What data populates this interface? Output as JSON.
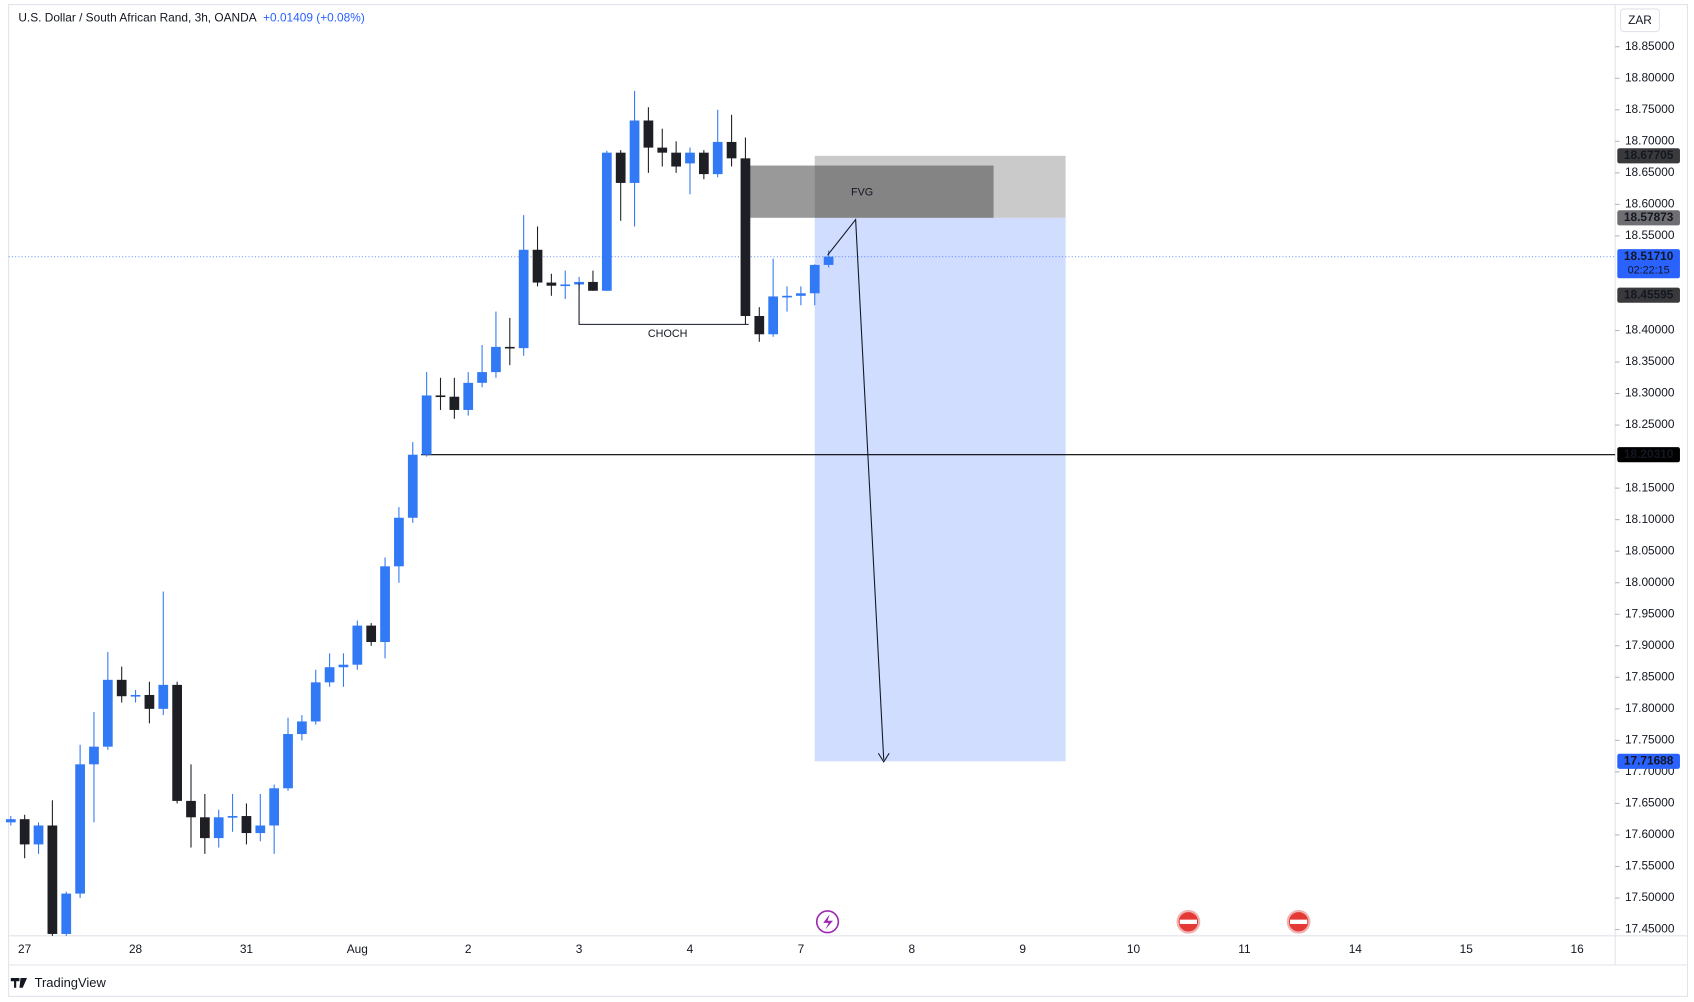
{
  "chart_data": {
    "type": "candlestick",
    "title": "U.S. Dollar / South African Rand, 3h, OANDA",
    "change": "+0.01409 (+0.08%)",
    "currency": "ZAR",
    "footer": "TradingView",
    "up_color": "#3179f5",
    "down_color": "#1e1f24",
    "categories": [
      null,
      "27",
      null,
      null,
      null,
      null,
      null,
      null,
      null,
      "28",
      null,
      null,
      null,
      null,
      null,
      null,
      null,
      "31",
      null,
      null,
      null,
      null,
      null,
      null,
      null,
      "Aug",
      null,
      null,
      null,
      null,
      null,
      null,
      null,
      "2",
      null,
      null,
      null,
      null,
      null,
      null,
      null,
      "3",
      null,
      null,
      null,
      null,
      null,
      null,
      null,
      "4",
      null,
      null,
      null,
      null,
      null,
      null,
      null,
      "7",
      null,
      null,
      null,
      null,
      null,
      null,
      null,
      "8",
      null,
      null,
      null,
      null,
      null,
      null,
      null,
      "9",
      null,
      null,
      null,
      null,
      null,
      null,
      null,
      "10",
      null,
      null,
      null,
      null,
      null,
      null,
      null,
      "11",
      null,
      null,
      null,
      null,
      null,
      null,
      null,
      "14",
      null,
      null,
      null,
      null,
      null,
      null,
      null,
      "15",
      null,
      null,
      null,
      null,
      null,
      null,
      null,
      "16",
      null
    ],
    "open": [
      17.62,
      17.625,
      17.585,
      17.615,
      17.443,
      17.507,
      17.712,
      17.74,
      17.846,
      17.82,
      17.822,
      17.8,
      17.838,
      17.654,
      17.628,
      17.595,
      17.628,
      17.63,
      17.603,
      17.615,
      17.674,
      17.76,
      17.78,
      17.842,
      17.866,
      17.87,
      17.932,
      17.906,
      18.026,
      18.103,
      18.203,
      18.297,
      18.295,
      18.274,
      18.317,
      18.334,
      18.374,
      18.372,
      18.528,
      18.476,
      18.471,
      18.473,
      18.477,
      18.463,
      18.682,
      18.634,
      18.733,
      18.69,
      18.682,
      18.665,
      18.682,
      18.648,
      18.699,
      18.673,
      18.423,
      18.394,
      18.454,
      18.455,
      18.459,
      18.504,
      null,
      null,
      null,
      null,
      null,
      null,
      null,
      null,
      null,
      null,
      null,
      null,
      null,
      null,
      null,
      null,
      null,
      null,
      null,
      null,
      null,
      null,
      null,
      null,
      null,
      null,
      null,
      null,
      null,
      null,
      null,
      null,
      null,
      null,
      null,
      null,
      null,
      null,
      null,
      null,
      null,
      null,
      null,
      null,
      null,
      null,
      null,
      null,
      null,
      null,
      null,
      null,
      null,
      null,
      null
    ],
    "high": [
      17.63,
      17.632,
      17.62,
      17.655,
      17.51,
      17.743,
      17.795,
      17.89,
      17.867,
      17.83,
      17.843,
      17.986,
      17.843,
      17.712,
      17.665,
      17.64,
      17.665,
      17.65,
      17.665,
      17.68,
      17.786,
      17.79,
      17.862,
      17.888,
      17.888,
      17.94,
      17.936,
      18.04,
      18.12,
      18.223,
      18.334,
      18.325,
      18.325,
      18.334,
      18.377,
      18.43,
      18.42,
      18.583,
      18.565,
      18.49,
      18.495,
      18.485,
      18.495,
      18.685,
      18.686,
      18.78,
      18.754,
      18.72,
      18.7,
      18.69,
      18.686,
      18.75,
      18.742,
      18.706,
      18.437,
      18.514,
      18.47,
      18.47,
      18.505,
      18.527,
      null,
      null,
      null,
      null,
      null,
      null,
      null,
      null,
      null,
      null,
      null,
      null,
      null,
      null,
      null,
      null,
      null,
      null,
      null,
      null,
      null,
      null,
      null,
      null,
      null,
      null,
      null,
      null,
      null,
      null,
      null,
      null,
      null,
      null,
      null,
      null,
      null,
      null,
      null,
      null,
      null,
      null,
      null,
      null,
      null,
      null,
      null,
      null,
      null,
      null,
      null,
      null,
      null,
      null,
      null
    ],
    "low": [
      17.615,
      17.563,
      17.57,
      17.44,
      17.44,
      17.5,
      17.62,
      17.735,
      17.81,
      17.81,
      17.777,
      17.79,
      17.65,
      17.58,
      17.57,
      17.58,
      17.605,
      17.585,
      17.59,
      17.57,
      17.67,
      17.75,
      17.775,
      17.835,
      17.835,
      17.862,
      17.9,
      17.88,
      18.0,
      18.095,
      18.2,
      18.274,
      18.26,
      18.265,
      18.31,
      18.325,
      18.345,
      18.36,
      18.47,
      18.455,
      18.45,
      18.465,
      18.463,
      18.463,
      18.574,
      18.565,
      18.65,
      18.66,
      18.65,
      18.616,
      18.64,
      18.643,
      18.66,
      18.41,
      18.382,
      18.39,
      18.43,
      18.44,
      18.44,
      18.5,
      null,
      null,
      null,
      null,
      null,
      null,
      null,
      null,
      null,
      null,
      null,
      null,
      null,
      null,
      null,
      null,
      null,
      null,
      null,
      null,
      null,
      null,
      null,
      null,
      null,
      null,
      null,
      null,
      null,
      null,
      null,
      null,
      null,
      null,
      null,
      null,
      null,
      null,
      null,
      null,
      null,
      null,
      null,
      null,
      null,
      null,
      null,
      null,
      null,
      null,
      null,
      null,
      null,
      null,
      null
    ],
    "close": [
      17.625,
      17.585,
      17.615,
      17.443,
      17.507,
      17.712,
      17.74,
      17.846,
      17.82,
      17.822,
      17.8,
      17.838,
      17.654,
      17.628,
      17.595,
      17.628,
      17.63,
      17.603,
      17.615,
      17.674,
      17.76,
      17.78,
      17.842,
      17.866,
      17.87,
      17.932,
      17.906,
      18.026,
      18.103,
      18.203,
      18.297,
      18.295,
      18.274,
      18.317,
      18.334,
      18.374,
      18.372,
      18.528,
      18.476,
      18.471,
      18.473,
      18.477,
      18.463,
      18.682,
      18.634,
      18.733,
      18.69,
      18.682,
      18.66,
      18.682,
      18.648,
      18.699,
      18.673,
      18.423,
      18.394,
      18.454,
      18.455,
      18.459,
      18.504,
      18.5171,
      null,
      null,
      null,
      null,
      null,
      null,
      null,
      null,
      null,
      null,
      null,
      null,
      null,
      null,
      null,
      null,
      null,
      null,
      null,
      null,
      null,
      null,
      null,
      null,
      null,
      null,
      null,
      null,
      null,
      null,
      null,
      null,
      null,
      null,
      null,
      null,
      null,
      null,
      null,
      null,
      null,
      null,
      null,
      null,
      null,
      null,
      null,
      null,
      null,
      null,
      null,
      null,
      null,
      null,
      null
    ],
    "ylim": [
      17.44,
      18.91
    ],
    "yticks": [
      {
        "value": 17.45,
        "label": "17.45000"
      },
      {
        "value": 17.5,
        "label": "17.50000"
      },
      {
        "value": 17.55,
        "label": "17.55000"
      },
      {
        "value": 17.6,
        "label": "17.60000"
      },
      {
        "value": 17.65,
        "label": "17.65000"
      },
      {
        "value": 17.7,
        "label": "17.70000"
      },
      {
        "value": 17.75,
        "label": "17.75000"
      },
      {
        "value": 17.8,
        "label": "17.80000"
      },
      {
        "value": 17.85,
        "label": "17.85000"
      },
      {
        "value": 17.9,
        "label": "17.90000"
      },
      {
        "value": 17.95,
        "label": "17.95000"
      },
      {
        "value": 18,
        "label": "18.00000"
      },
      {
        "value": 18.05,
        "label": "18.05000"
      },
      {
        "value": 18.1,
        "label": "18.10000"
      },
      {
        "value": 18.15,
        "label": "18.15000"
      },
      {
        "value": 18.25,
        "label": "18.25000"
      },
      {
        "value": 18.3,
        "label": "18.30000"
      },
      {
        "value": 18.35,
        "label": "18.35000"
      },
      {
        "value": 18.4,
        "label": "18.40000"
      },
      {
        "value": 18.55,
        "label": "18.55000"
      },
      {
        "value": 18.6,
        "label": "18.60000"
      },
      {
        "value": 18.65,
        "label": "18.65000"
      },
      {
        "value": 18.7,
        "label": "18.70000"
      },
      {
        "value": 18.75,
        "label": "18.75000"
      },
      {
        "value": 18.8,
        "label": "18.80000"
      },
      {
        "value": 18.85,
        "label": "18.85000"
      }
    ],
    "levels": [
      {
        "price": 18.67705,
        "color": "#3a3a3d"
      },
      {
        "price": 18.57873,
        "color": "#6f6f73"
      },
      {
        "price": {
          "value": 18.5171,
          "label": "18.51710"
        },
        "color": "#2962ff",
        "countdown": "02:22:15"
      },
      {
        "price": 18.45595,
        "color": "#3a3a3d"
      },
      {
        "price": {
          "value": 18.2031,
          "label": "18.20310"
        },
        "color": "#000000"
      },
      {
        "price": 17.71688,
        "color": "#2962ff"
      }
    ],
    "annotations": {
      "fvg": "FVG",
      "choch": "CHOCH"
    }
  }
}
